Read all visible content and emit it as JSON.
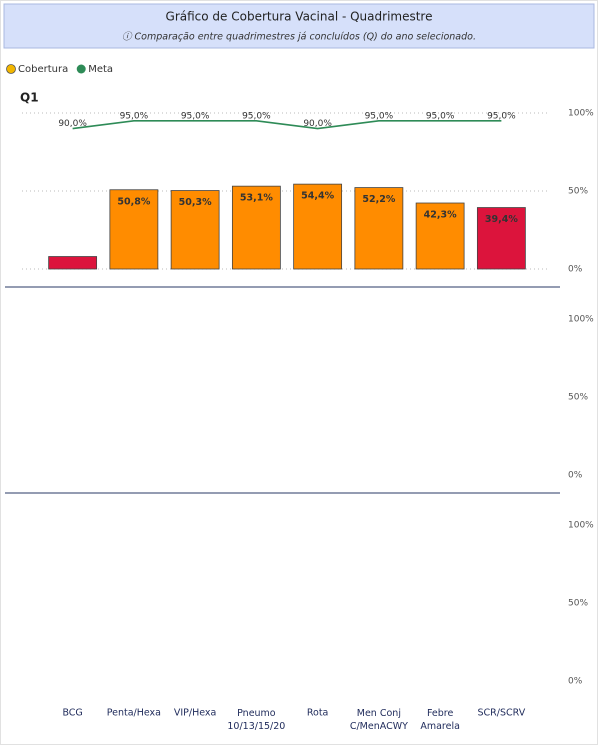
{
  "header": {
    "title": "Gráfico de Cobertura Vacinal - Quadrimestre",
    "subtitle": "ⓘ Comparação entre quadrimestres já concluídos (Q) do ano selecionado."
  },
  "chart_data": {
    "type": "bar-line",
    "panel_title": "Q1",
    "categories": [
      "BCG",
      "Penta/Hexa",
      "VIP/Hexa",
      "Pneumo 10/13/15/20",
      "Rota",
      "Men Conj C/MenACWY",
      "Febre Amarela",
      "SCR/SCRV"
    ],
    "series": [
      {
        "name": "Cobertura",
        "color": "#f2b600",
        "colors": [
          "#dc143c",
          "#ff8c00",
          "#ff8c00",
          "#ff8c00",
          "#ff8c00",
          "#ff8c00",
          "#ff8c00",
          "#dc143c"
        ],
        "values": [
          8,
          50.8,
          50.3,
          53.1,
          54.4,
          52.2,
          42.3,
          39.4
        ],
        "value_labels": [
          null,
          "50,8%",
          "50,3%",
          "53,1%",
          "54,4%",
          "52,2%",
          "42,3%",
          "39,4%"
        ]
      },
      {
        "name": "Meta",
        "color": "#2e8b57",
        "values": [
          90,
          95,
          95,
          95,
          90,
          95,
          95,
          95
        ],
        "value_labels": [
          "90,0%",
          "95,0%",
          "95,0%",
          "95,0%",
          "90,0%",
          "95,0%",
          "95,0%",
          "95,0%"
        ]
      }
    ],
    "ylim": [
      0,
      100
    ],
    "yticks": [
      {
        "value": 0,
        "label": "0%"
      },
      {
        "value": 50,
        "label": "50%"
      },
      {
        "value": 100,
        "label": "100%"
      }
    ],
    "grid": true
  }
}
